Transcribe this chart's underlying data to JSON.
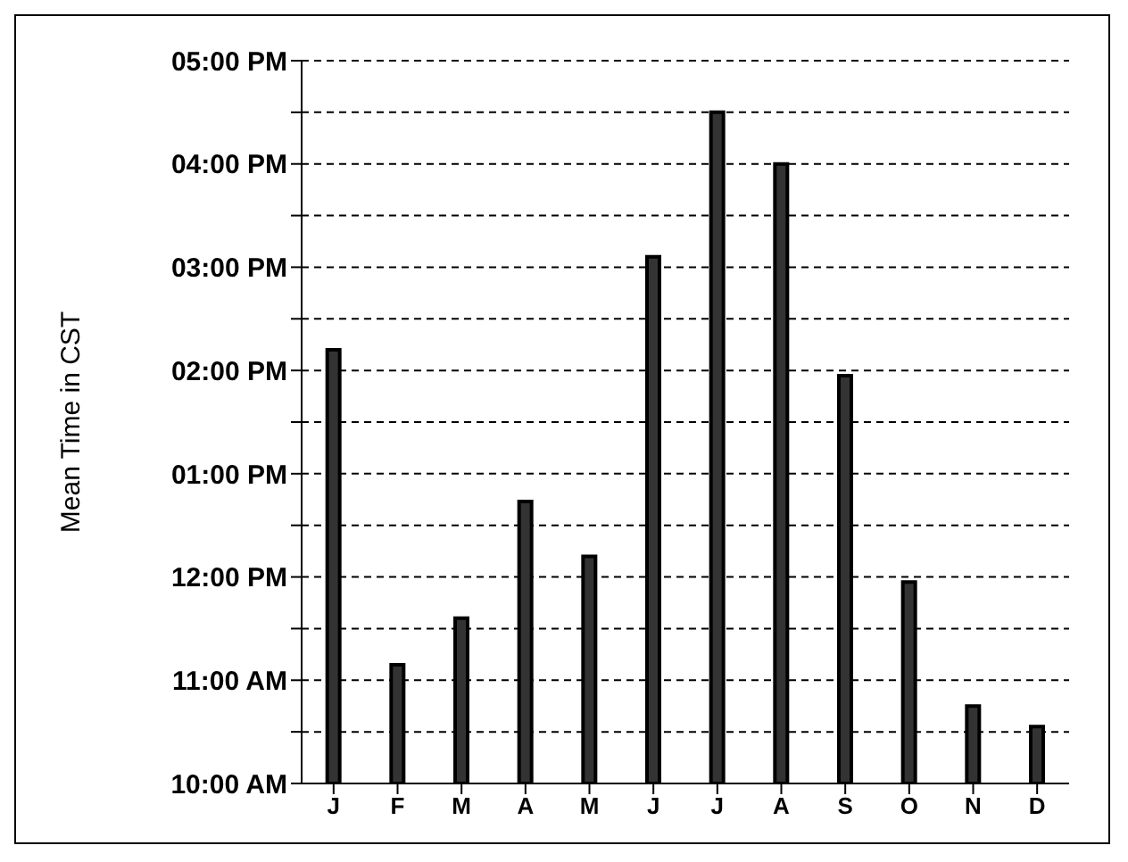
{
  "chart_data": {
    "type": "bar",
    "ylabel": "Mean Time in CST",
    "categories": [
      "J",
      "F",
      "M",
      "A",
      "M",
      "J",
      "J",
      "A",
      "S",
      "O",
      "N",
      "D"
    ],
    "values": [
      14.2,
      11.15,
      11.6,
      12.73,
      12.2,
      15.1,
      16.5,
      16.0,
      13.95,
      11.95,
      10.75,
      10.55
    ],
    "color": "#333333",
    "ylim": [
      10,
      17
    ],
    "yticks": [
      {
        "value": 10,
        "label": "10:00 AM"
      },
      {
        "value": 10.5,
        "label": null
      },
      {
        "value": 11,
        "label": "11:00 AM"
      },
      {
        "value": 11.5,
        "label": null
      },
      {
        "value": 12,
        "label": "12:00 PM"
      },
      {
        "value": 12.5,
        "label": null
      },
      {
        "value": 13,
        "label": "01:00 PM"
      },
      {
        "value": 13.5,
        "label": null
      },
      {
        "value": 14,
        "label": "02:00 PM"
      },
      {
        "value": 14.5,
        "label": null
      },
      {
        "value": 15,
        "label": "03:00 PM"
      },
      {
        "value": 15.5,
        "label": null
      },
      {
        "value": 16,
        "label": "04:00 PM"
      },
      {
        "value": 16.5,
        "label": null
      },
      {
        "value": 17,
        "label": "05:00 PM"
      }
    ],
    "grid": "y"
  }
}
